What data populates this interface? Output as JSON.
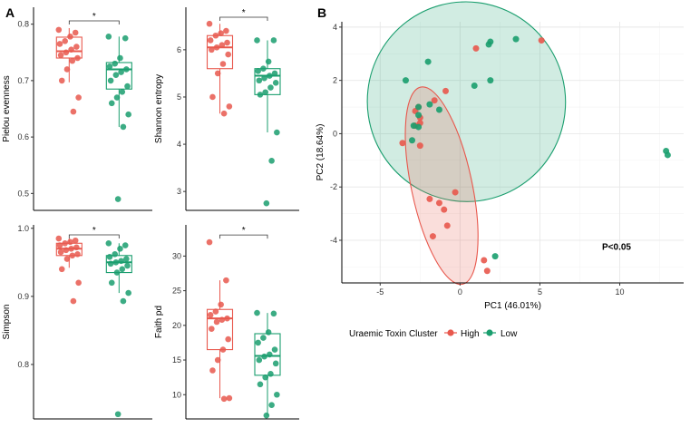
{
  "panel_labels": [
    "A",
    "B"
  ],
  "colors": {
    "High": "#E8584D",
    "Low": "#1A9E6E"
  },
  "legend": {
    "title": "Uraemic Toxin Cluster",
    "entries": [
      "High",
      "Low"
    ]
  },
  "chart_data": [
    {
      "type": "box",
      "id": "pielou",
      "ylabel": "Pielou evenness",
      "ylim": [
        0.47,
        0.83
      ],
      "yticks": [
        0.5,
        0.6,
        0.7,
        0.8
      ],
      "tick_labels": [
        "0.5",
        "0.6",
        "0.7",
        "0.8"
      ],
      "significance": "*",
      "groups": [
        {
          "name": "High",
          "q1": 0.74,
          "median": 0.752,
          "q3": 0.777,
          "whisker_low": 0.697,
          "whisker_high": 0.793,
          "points": [
            0.79,
            0.785,
            0.778,
            0.77,
            0.765,
            0.76,
            0.755,
            0.75,
            0.745,
            0.74,
            0.735,
            0.72,
            0.7,
            0.67,
            0.645
          ]
        },
        {
          "name": "Low",
          "q1": 0.685,
          "median": 0.72,
          "q3": 0.732,
          "whisker_low": 0.618,
          "whisker_high": 0.778,
          "points": [
            0.778,
            0.775,
            0.74,
            0.73,
            0.725,
            0.72,
            0.715,
            0.71,
            0.7,
            0.69,
            0.68,
            0.67,
            0.66,
            0.64,
            0.618,
            0.49
          ]
        }
      ]
    },
    {
      "type": "box",
      "id": "shannon",
      "ylabel": "Shannon entropy",
      "ylim": [
        2.6,
        6.9
      ],
      "yticks": [
        3,
        4,
        5,
        6
      ],
      "tick_labels": [
        "3",
        "4",
        "5",
        "6"
      ],
      "significance": "*",
      "groups": [
        {
          "name": "High",
          "q1": 5.6,
          "median": 6.05,
          "q3": 6.3,
          "whisker_low": 4.65,
          "whisker_high": 6.55,
          "points": [
            6.55,
            6.4,
            6.35,
            6.3,
            6.2,
            6.15,
            6.1,
            6.05,
            6.0,
            5.9,
            5.7,
            5.5,
            5.0,
            4.8,
            4.65
          ]
        },
        {
          "name": "Low",
          "q1": 5.05,
          "median": 5.45,
          "q3": 5.6,
          "whisker_low": 4.25,
          "whisker_high": 6.2,
          "points": [
            6.2,
            6.2,
            5.75,
            5.6,
            5.55,
            5.5,
            5.45,
            5.4,
            5.35,
            5.3,
            5.2,
            5.1,
            5.05,
            4.25,
            3.65,
            2.75
          ]
        }
      ]
    },
    {
      "type": "box",
      "id": "simpson",
      "ylabel": "Simpson",
      "ylim": [
        0.72,
        1.005
      ],
      "yticks": [
        0.8,
        0.9,
        1.0
      ],
      "tick_labels": [
        "0.8",
        "0.9",
        "1.0"
      ],
      "significance": "*",
      "groups": [
        {
          "name": "High",
          "q1": 0.96,
          "median": 0.97,
          "q3": 0.978,
          "whisker_low": 0.942,
          "whisker_high": 0.985,
          "points": [
            0.985,
            0.982,
            0.98,
            0.978,
            0.975,
            0.972,
            0.97,
            0.968,
            0.965,
            0.962,
            0.96,
            0.955,
            0.94,
            0.92,
            0.893
          ]
        },
        {
          "name": "Low",
          "q1": 0.935,
          "median": 0.95,
          "q3": 0.96,
          "whisker_low": 0.905,
          "whisker_high": 0.978,
          "points": [
            0.978,
            0.975,
            0.97,
            0.962,
            0.958,
            0.955,
            0.952,
            0.95,
            0.948,
            0.945,
            0.94,
            0.935,
            0.92,
            0.905,
            0.893,
            0.727
          ]
        }
      ]
    },
    {
      "type": "box",
      "id": "faith",
      "ylabel": "Faith pd",
      "ylim": [
        6.5,
        34.5
      ],
      "yticks": [
        10,
        15,
        20,
        25,
        30
      ],
      "tick_labels": [
        "10",
        "15",
        "20",
        "25",
        "30"
      ],
      "significance": "*",
      "groups": [
        {
          "name": "High",
          "q1": 16.5,
          "median": 21.0,
          "q3": 22.3,
          "whisker_low": 9.5,
          "whisker_high": 26.5,
          "points": [
            32.0,
            26.5,
            23.0,
            22.0,
            21.5,
            21.0,
            20.8,
            20.5,
            19.5,
            18.0,
            16.5,
            15.0,
            13.5,
            9.5,
            9.4
          ]
        },
        {
          "name": "Low",
          "q1": 12.8,
          "median": 15.6,
          "q3": 18.8,
          "whisker_low": 7.0,
          "whisker_high": 21.8,
          "points": [
            21.8,
            21.7,
            19.0,
            18.2,
            17.5,
            16.5,
            15.8,
            15.5,
            15.0,
            14.5,
            13.0,
            12.5,
            11.5,
            10.0,
            8.5,
            7.0
          ]
        }
      ]
    },
    {
      "type": "scatter",
      "id": "pca",
      "xlabel": "PC1 (46.01%)",
      "ylabel": "PC2 (18.64%)",
      "xlim": [
        -7.4,
        14.0
      ],
      "ylim": [
        -5.6,
        4.2
      ],
      "xticks": [
        -5,
        0,
        5,
        10
      ],
      "xtick_labels": [
        "-5",
        "0",
        "5",
        "10"
      ],
      "yticks": [
        -4,
        -2,
        0,
        2,
        4
      ],
      "ytick_labels": [
        "-4",
        "-2",
        "0",
        "2",
        "4"
      ],
      "annotation": "P<0.05",
      "annotation_pos": [
        9.8,
        -4.35
      ],
      "ellipses": [
        {
          "group": "Low",
          "cx": 0.4,
          "cy": 1.2,
          "rx": 6.2,
          "ry": 3.75,
          "angle_deg": 15
        },
        {
          "group": "High",
          "cx": -1.15,
          "cy": -1.95,
          "rx": 1.9,
          "ry": 3.78,
          "angle_deg": 12
        }
      ],
      "series": [
        {
          "name": "High",
          "points": [
            [
              5.1,
              3.5
            ],
            [
              1.0,
              3.2
            ],
            [
              -0.9,
              1.6
            ],
            [
              -1.6,
              1.25
            ],
            [
              -2.6,
              1.0
            ],
            [
              -2.8,
              0.85
            ],
            [
              -2.5,
              0.6
            ],
            [
              -2.5,
              0.4
            ],
            [
              -2.8,
              0.3
            ],
            [
              -3.6,
              -0.35
            ],
            [
              -2.5,
              -0.45
            ],
            [
              -0.3,
              -2.2
            ],
            [
              -1.9,
              -2.45
            ],
            [
              -1.3,
              -2.6
            ],
            [
              -1.0,
              -2.85
            ],
            [
              -0.8,
              -3.45
            ],
            [
              -1.7,
              -3.85
            ],
            [
              1.5,
              -4.75
            ],
            [
              1.7,
              -5.15
            ]
          ]
        },
        {
          "name": "Low",
          "points": [
            [
              3.5,
              3.55
            ],
            [
              1.9,
              3.45
            ],
            [
              1.8,
              3.35
            ],
            [
              -2.0,
              2.7
            ],
            [
              -3.4,
              2.0
            ],
            [
              1.9,
              2.0
            ],
            [
              0.9,
              1.8
            ],
            [
              -1.9,
              1.1
            ],
            [
              -2.6,
              1.0
            ],
            [
              -1.3,
              0.9
            ],
            [
              -2.6,
              0.7
            ],
            [
              -2.9,
              0.3
            ],
            [
              -2.6,
              0.25
            ],
            [
              -3.0,
              -0.25
            ],
            [
              2.2,
              -4.6
            ],
            [
              12.9,
              -0.65
            ],
            [
              13.0,
              -0.8
            ]
          ]
        }
      ]
    }
  ]
}
